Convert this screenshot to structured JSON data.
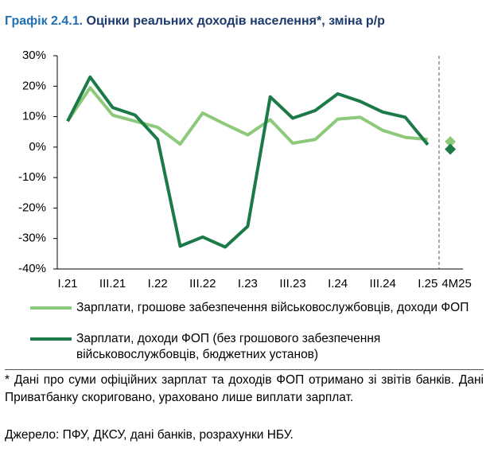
{
  "header": {
    "number": "Графік 2.4.1.",
    "title": "Оцінки реальних доходів населення*, зміна р/р"
  },
  "chart_data": {
    "type": "line",
    "categories": [
      "I.21",
      null,
      "III.21",
      null,
      "I.22",
      null,
      "III.22",
      null,
      "I.23",
      null,
      "III.23",
      null,
      "I.24",
      null,
      "III.24",
      null,
      "I.25",
      "4M25"
    ],
    "series": [
      {
        "name": "Зарплати, грошове забезпечення військовослужбовців, доходи ФОП",
        "color": "#8dc97b",
        "values": [
          8.5,
          19.5,
          10.5,
          8.5,
          6.5,
          1,
          11.2,
          7.5,
          4,
          9,
          1.3,
          2.5,
          9.2,
          9.8,
          5.5,
          3.2,
          2.5,
          1.8
        ]
      },
      {
        "name": "Зарплати, доходи ФОП (без грошового забезпечення військовослужбовців, бюджетних установ)",
        "color": "#1b7a48",
        "values": [
          8.5,
          23,
          13,
          10.5,
          2.5,
          -32.5,
          -29.5,
          -32.8,
          -26,
          16.5,
          9.5,
          12,
          17.5,
          15,
          11.5,
          9.8,
          0.8,
          -0.7
        ]
      }
    ],
    "ylim": [
      -40,
      30
    ],
    "yticks": [
      {
        "value": -40,
        "label": "-40%"
      },
      {
        "value": -30,
        "label": "-30%"
      },
      {
        "value": -20,
        "label": "-20%"
      },
      {
        "value": -10,
        "label": "-10%"
      },
      {
        "value": 0,
        "label": "0%"
      },
      {
        "value": 10,
        "label": "10%"
      },
      {
        "value": 20,
        "label": "20%"
      },
      {
        "value": 30,
        "label": "30%"
      }
    ]
  },
  "footnote": "* Дані про суми офіційних зарплат та доходів ФОП отримано зі звітів банків. Дані Приватбанку скориговано, ураховано лише виплати зарплат.",
  "source": "Джерело: ПФУ, ДКСУ, дані банків, розрахунки НБУ."
}
